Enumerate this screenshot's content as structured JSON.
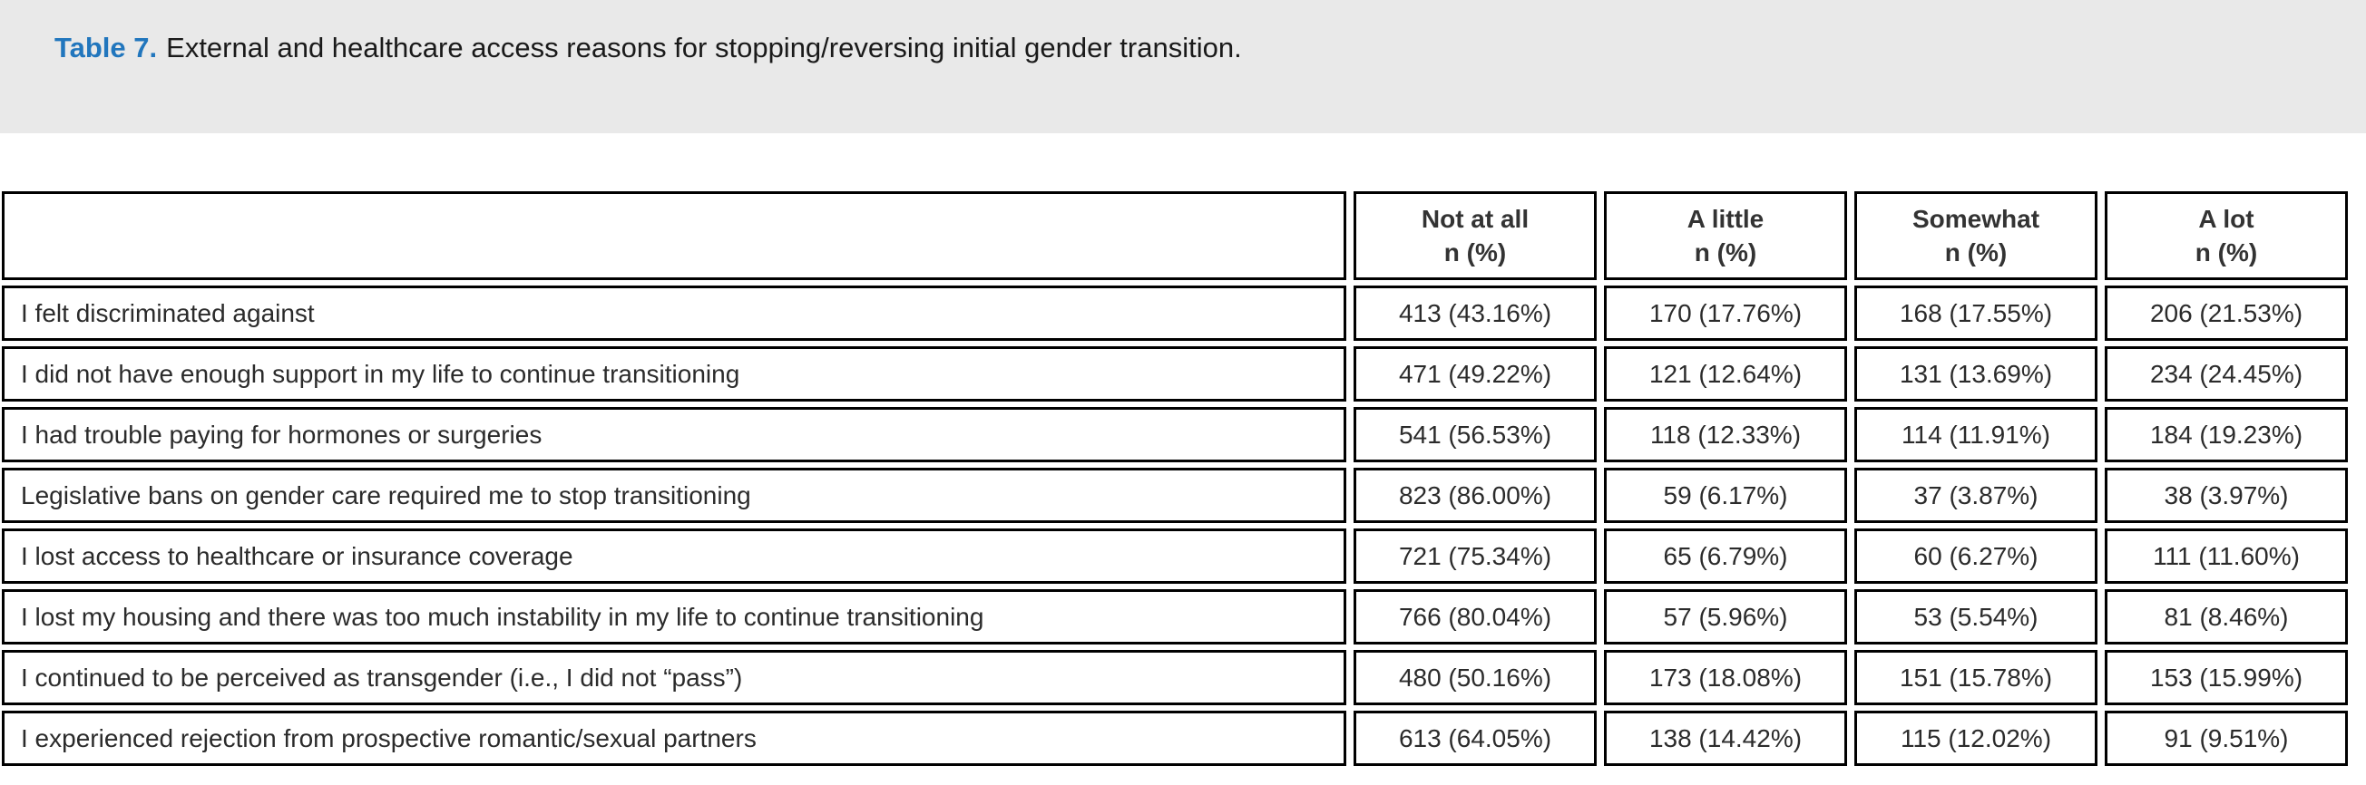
{
  "caption": {
    "label": "Table 7.",
    "text": "External and healthcare access reasons for stopping/reversing initial gender transition."
  },
  "table": {
    "columns": [
      {
        "label": "Not at all",
        "sub": "n (%)"
      },
      {
        "label": "A little",
        "sub": "n (%)"
      },
      {
        "label": "Somewhat",
        "sub": "n (%)"
      },
      {
        "label": "A lot",
        "sub": "n (%)"
      }
    ],
    "rows": [
      {
        "label": "I felt discriminated against",
        "values": [
          "413 (43.16%)",
          "170 (17.76%)",
          "168 (17.55%)",
          "206 (21.53%)"
        ]
      },
      {
        "label": "I did not have enough support in my life to continue transitioning",
        "values": [
          "471 (49.22%)",
          "121 (12.64%)",
          "131 (13.69%)",
          "234 (24.45%)"
        ]
      },
      {
        "label": "I had trouble paying for hormones or surgeries",
        "values": [
          "541 (56.53%)",
          "118 (12.33%)",
          "114 (11.91%)",
          "184 (19.23%)"
        ]
      },
      {
        "label": "Legislative bans on gender care required me to stop transitioning",
        "values": [
          "823 (86.00%)",
          "59 (6.17%)",
          "37 (3.87%)",
          "38 (3.97%)"
        ]
      },
      {
        "label": "I lost access to healthcare or insurance coverage",
        "values": [
          "721 (75.34%)",
          "65 (6.79%)",
          "60 (6.27%)",
          "111 (11.60%)"
        ]
      },
      {
        "label": "I lost my housing and there was too much instability in my life to continue transitioning",
        "values": [
          "766 (80.04%)",
          "57 (5.96%)",
          "53 (5.54%)",
          "81 (8.46%)"
        ]
      },
      {
        "label": "I continued to be perceived as transgender (i.e., I did not “pass”)",
        "values": [
          "480 (50.16%)",
          "173 (18.08%)",
          "151 (15.78%)",
          "153 (15.99%)"
        ]
      },
      {
        "label": "I experienced rejection from prospective romantic/sexual partners",
        "values": [
          "613 (64.05%)",
          "138 (14.42%)",
          "115 (12.02%)",
          "91 (9.51%)"
        ]
      }
    ]
  },
  "colors": {
    "accent_blue": "#2176bd",
    "caption_bg": "#e9e9e9",
    "border": "#000000"
  }
}
